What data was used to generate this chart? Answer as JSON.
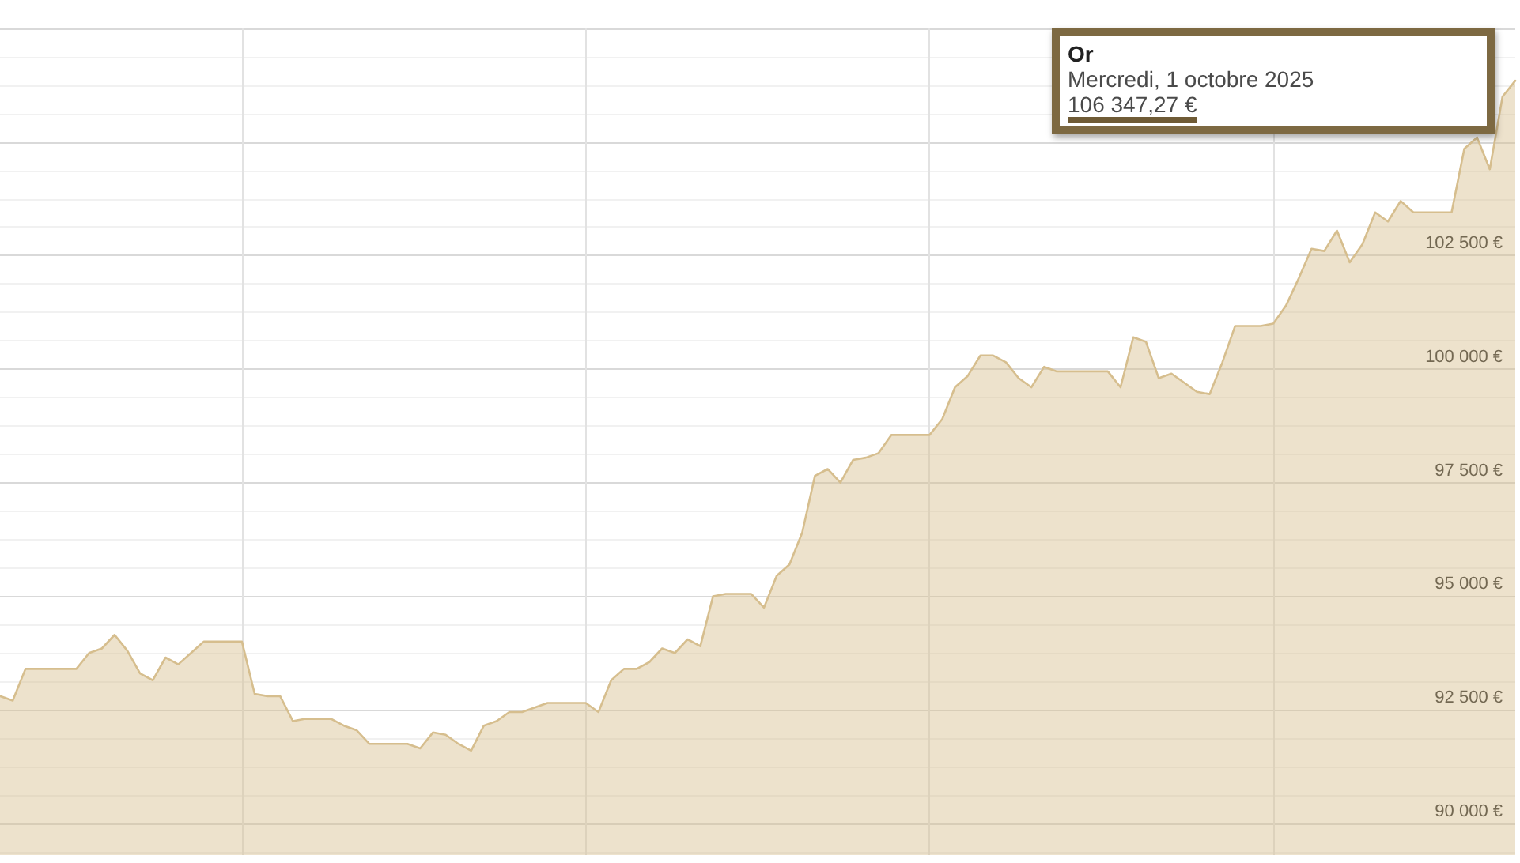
{
  "chart_data": {
    "type": "area",
    "categories": [
      null,
      null,
      null,
      null,
      null,
      null,
      null,
      null,
      null,
      null,
      null,
      null,
      null,
      null,
      null,
      null,
      null,
      null,
      null,
      null,
      null,
      null,
      null,
      null,
      null,
      null,
      null,
      null,
      null,
      null,
      null,
      null,
      null,
      null,
      null,
      null,
      null,
      null,
      null,
      null,
      null,
      null,
      null,
      null,
      null,
      null,
      null,
      null,
      null,
      null,
      null,
      null,
      null,
      null,
      null,
      null,
      null,
      null,
      null,
      null,
      null,
      null,
      null,
      null,
      null,
      null,
      null,
      null,
      null,
      null,
      null,
      null,
      null,
      null,
      null,
      null,
      null,
      null,
      null,
      null,
      null,
      null,
      null,
      null,
      null,
      null,
      null,
      null,
      null,
      null,
      null,
      null,
      null,
      null,
      null,
      null,
      null,
      null,
      null,
      null,
      null,
      null,
      null,
      null,
      null,
      null,
      null,
      null,
      null,
      null,
      null,
      null,
      null,
      null,
      null,
      null,
      null,
      null,
      null,
      null
    ],
    "series": [
      {
        "name": "Or",
        "color": "#d6be8e",
        "values": [
          92800,
          92700,
          93400,
          93400,
          93400,
          93400,
          93400,
          93750,
          93850,
          94150,
          93800,
          93300,
          93150,
          93650,
          93500,
          93750,
          94000,
          94000,
          94000,
          94000,
          92850,
          92800,
          92800,
          92250,
          92300,
          92300,
          92300,
          92150,
          92050,
          91750,
          91750,
          91750,
          91750,
          91650,
          92000,
          91950,
          91750,
          91600,
          92150,
          92250,
          92450,
          92450,
          92550,
          92650,
          92650,
          92650,
          92650,
          92450,
          93150,
          93400,
          93400,
          93550,
          93850,
          93750,
          94050,
          93900,
          95000,
          95050,
          95050,
          95050,
          94750,
          95450,
          95700,
          96400,
          97650,
          97800,
          97500,
          98000,
          98050,
          98150,
          98550,
          98550,
          98550,
          98550,
          98900,
          99600,
          99850,
          100300,
          100300,
          100150,
          99800,
          99600,
          100050,
          99950,
          99950,
          99950,
          99950,
          99950,
          99600,
          100700,
          100600,
          99800,
          99900,
          99700,
          99500,
          99450,
          100150,
          100950,
          100950,
          100950,
          101000,
          101400,
          102000,
          102650,
          102600,
          103050,
          102350,
          102750,
          103450,
          103250,
          103700,
          103450,
          103450,
          103450,
          103450,
          104850,
          105100,
          104400,
          106000,
          106350
        ]
      }
    ],
    "ylim": [
      89300,
      107500
    ],
    "yticks": [
      {
        "value": 90000,
        "label": "90 000 €"
      },
      {
        "value": 92500,
        "label": "92 500 €"
      },
      {
        "value": 95000,
        "label": "95 000 €"
      },
      {
        "value": 97500,
        "label": "97 500 €"
      },
      {
        "value": 100000,
        "label": "100 000 €"
      },
      {
        "value": 102500,
        "label": "102 500 €"
      },
      {
        "value": 105000,
        "label": null
      },
      {
        "value": 107500,
        "label": null
      }
    ],
    "annotations": [
      "Mercredi, 1 octobre 2025",
      "106 347,27 €"
    ],
    "grid": true,
    "tick_labels": "y"
  }
}
